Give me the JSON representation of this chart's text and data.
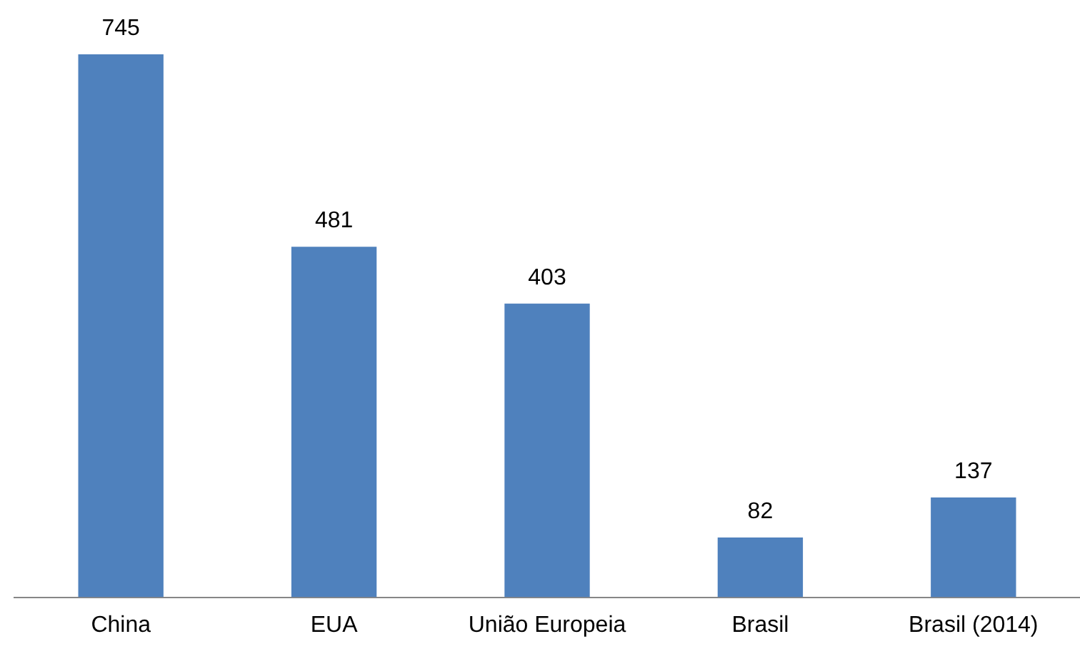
{
  "chart_data": {
    "type": "bar",
    "categories": [
      "China",
      "EUA",
      "União Europeia",
      "Brasil",
      "Brasil (2014)"
    ],
    "values": [
      745,
      481,
      403,
      82,
      137
    ],
    "color": "#4f81bd",
    "data_labels": true,
    "legend": false,
    "grid": false
  }
}
